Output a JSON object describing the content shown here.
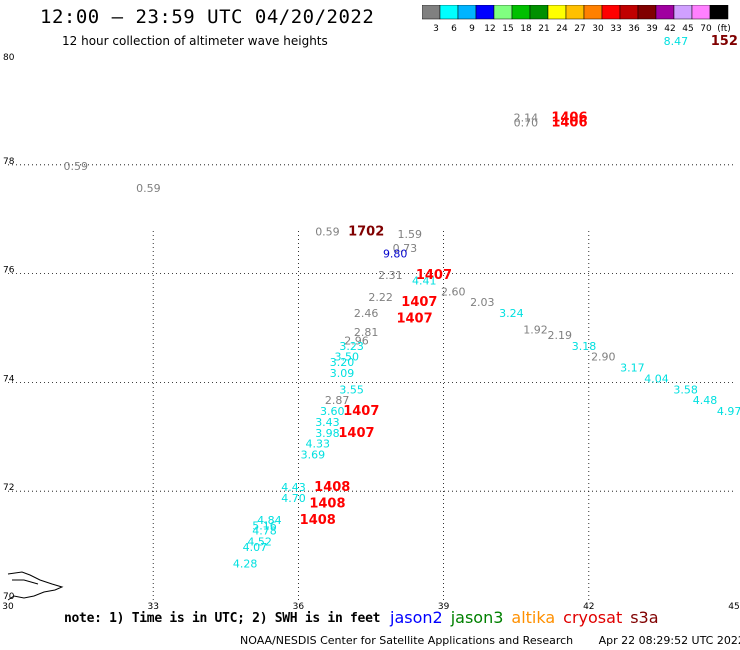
{
  "title": "12:00 – 23:59 UTC 04/20/2022",
  "subtitle": "12 hour collection of altimeter wave heights",
  "color_scale": {
    "colors": [
      "#808080",
      "#00ffff",
      "#00b4ff",
      "#0000ff",
      "#80ff80",
      "#00c000",
      "#009000",
      "#ffff00",
      "#ffc000",
      "#ff8000",
      "#ff0000",
      "#c00000",
      "#800000",
      "#a000a0",
      "#d0a0ff",
      "#ff80ff",
      "#000000"
    ],
    "labels": [
      "3",
      "6",
      "9",
      "12",
      "15",
      "18",
      "21",
      "24",
      "27",
      "30",
      "33",
      "36",
      "39",
      "42",
      "45",
      "70",
      "(ft)"
    ]
  },
  "note": "note: 1) Time is in UTC; 2) SWH is in feet",
  "satellites": [
    {
      "name": "jason2",
      "color": "#0000ff"
    },
    {
      "name": "jason3",
      "color": "#008000"
    },
    {
      "name": "altika",
      "color": "#ff9000"
    },
    {
      "name": "cryosat",
      "color": "#e00000"
    },
    {
      "name": "s3a",
      "color": "#800000"
    }
  ],
  "footer": {
    "credit": "NOAA/NESDIS Center for Satellite Applications and Research",
    "timestamp": "Apr 22 08:29:52 UTC 2022"
  },
  "chart_data": {
    "type": "scatter",
    "xlim": [
      30,
      45
    ],
    "ylim": [
      70,
      80
    ],
    "x_ticks": [
      30,
      33,
      36,
      39,
      42,
      45
    ],
    "y_ticks": [
      70,
      72,
      74,
      76,
      78,
      80
    ],
    "grid": true,
    "colors": {
      "gray": "#808080",
      "cyan": "#00e0e0",
      "navy": "#0000cc",
      "red": "#ff0000",
      "maroon": "#800000"
    },
    "points": [
      {
        "x": 31.4,
        "y": 77.9,
        "label": "0.59",
        "color": "gray"
      },
      {
        "x": 32.9,
        "y": 77.5,
        "label": "0.59",
        "color": "gray"
      },
      {
        "x": 36.6,
        "y": 76.7,
        "label": "0.59",
        "color": "gray"
      },
      {
        "x": 37.4,
        "y": 76.7,
        "label": "1702",
        "color": "maroon"
      },
      {
        "x": 38.3,
        "y": 76.65,
        "label": "1.59",
        "color": "gray"
      },
      {
        "x": 38.2,
        "y": 76.4,
        "label": "0.73",
        "color": "gray"
      },
      {
        "x": 38.0,
        "y": 76.3,
        "label": "9.80",
        "color": "navy"
      },
      {
        "x": 38.6,
        "y": 75.8,
        "label": "4.41",
        "color": "cyan"
      },
      {
        "x": 38.8,
        "y": 75.9,
        "label": "1407",
        "color": "red"
      },
      {
        "x": 37.9,
        "y": 75.9,
        "label": "2.31",
        "color": "gray"
      },
      {
        "x": 39.2,
        "y": 75.6,
        "label": "2.60",
        "color": "gray"
      },
      {
        "x": 37.7,
        "y": 75.5,
        "label": "2.22",
        "color": "gray"
      },
      {
        "x": 38.5,
        "y": 75.4,
        "label": "1407",
        "color": "red"
      },
      {
        "x": 39.8,
        "y": 75.4,
        "label": "2.03",
        "color": "gray"
      },
      {
        "x": 37.4,
        "y": 75.2,
        "label": "2.46",
        "color": "gray"
      },
      {
        "x": 38.4,
        "y": 75.1,
        "label": "1407",
        "color": "red"
      },
      {
        "x": 40.4,
        "y": 75.2,
        "label": "3.24",
        "color": "cyan"
      },
      {
        "x": 40.9,
        "y": 74.9,
        "label": "1.92",
        "color": "gray"
      },
      {
        "x": 37.4,
        "y": 74.85,
        "label": "2.81",
        "color": "gray"
      },
      {
        "x": 41.4,
        "y": 74.8,
        "label": "2.19",
        "color": "gray"
      },
      {
        "x": 37.2,
        "y": 74.7,
        "label": "2.96",
        "color": "gray"
      },
      {
        "x": 37.1,
        "y": 74.6,
        "label": "3.23",
        "color": "cyan"
      },
      {
        "x": 41.9,
        "y": 74.6,
        "label": "3.18",
        "color": "cyan"
      },
      {
        "x": 37.0,
        "y": 74.4,
        "label": "3.50",
        "color": "cyan"
      },
      {
        "x": 42.3,
        "y": 74.4,
        "label": "2.90",
        "color": "gray"
      },
      {
        "x": 36.9,
        "y": 74.3,
        "label": "3.20",
        "color": "cyan"
      },
      {
        "x": 42.9,
        "y": 74.2,
        "label": "3.17",
        "color": "cyan"
      },
      {
        "x": 36.9,
        "y": 74.1,
        "label": "3.09",
        "color": "cyan"
      },
      {
        "x": 43.4,
        "y": 74.0,
        "label": "4.04",
        "color": "cyan"
      },
      {
        "x": 44.0,
        "y": 73.8,
        "label": "3.58",
        "color": "cyan"
      },
      {
        "x": 37.1,
        "y": 73.8,
        "label": "3.55",
        "color": "cyan"
      },
      {
        "x": 44.4,
        "y": 73.6,
        "label": "4.48",
        "color": "cyan"
      },
      {
        "x": 36.8,
        "y": 73.6,
        "label": "2.87",
        "color": "gray"
      },
      {
        "x": 37.3,
        "y": 73.4,
        "label": "1407",
        "color": "red"
      },
      {
        "x": 44.9,
        "y": 73.4,
        "label": "4.97",
        "color": "cyan"
      },
      {
        "x": 36.7,
        "y": 73.4,
        "label": "3.60",
        "color": "cyan"
      },
      {
        "x": 36.6,
        "y": 73.2,
        "label": "3.43",
        "color": "cyan"
      },
      {
        "x": 37.2,
        "y": 73.0,
        "label": "1407",
        "color": "red"
      },
      {
        "x": 36.6,
        "y": 73.0,
        "label": "3.98",
        "color": "cyan"
      },
      {
        "x": 36.4,
        "y": 72.8,
        "label": "4.33",
        "color": "cyan"
      },
      {
        "x": 36.3,
        "y": 72.6,
        "label": "3.69",
        "color": "cyan"
      },
      {
        "x": 35.9,
        "y": 72.0,
        "label": "4.43",
        "color": "cyan"
      },
      {
        "x": 36.7,
        "y": 72.0,
        "label": "1408",
        "color": "red"
      },
      {
        "x": 35.9,
        "y": 71.8,
        "label": "4.70",
        "color": "cyan"
      },
      {
        "x": 36.6,
        "y": 71.7,
        "label": "1408",
        "color": "red"
      },
      {
        "x": 35.4,
        "y": 71.4,
        "label": "4.84",
        "color": "cyan"
      },
      {
        "x": 36.4,
        "y": 71.4,
        "label": "1408",
        "color": "red"
      },
      {
        "x": 35.3,
        "y": 71.3,
        "label": "5.16",
        "color": "cyan"
      },
      {
        "x": 35.3,
        "y": 71.2,
        "label": "4.78",
        "color": "cyan"
      },
      {
        "x": 35.2,
        "y": 71.0,
        "label": "4.52",
        "color": "cyan"
      },
      {
        "x": 35.1,
        "y": 70.9,
        "label": "4.07",
        "color": "cyan"
      },
      {
        "x": 34.9,
        "y": 70.6,
        "label": "4.28",
        "color": "cyan"
      },
      {
        "x": 43.8,
        "y": 80.2,
        "label": "8.47",
        "color": "cyan"
      },
      {
        "x": 44.8,
        "y": 80.2,
        "label": "152",
        "color": "maroon"
      },
      {
        "x": 40.7,
        "y": 78.8,
        "label": "2.14",
        "color": "gray"
      },
      {
        "x": 40.7,
        "y": 78.7,
        "label": "0.70",
        "color": "gray"
      },
      {
        "x": 41.6,
        "y": 78.8,
        "label": "1406",
        "color": "red"
      },
      {
        "x": 41.6,
        "y": 78.7,
        "label": "1406",
        "color": "red"
      }
    ]
  }
}
